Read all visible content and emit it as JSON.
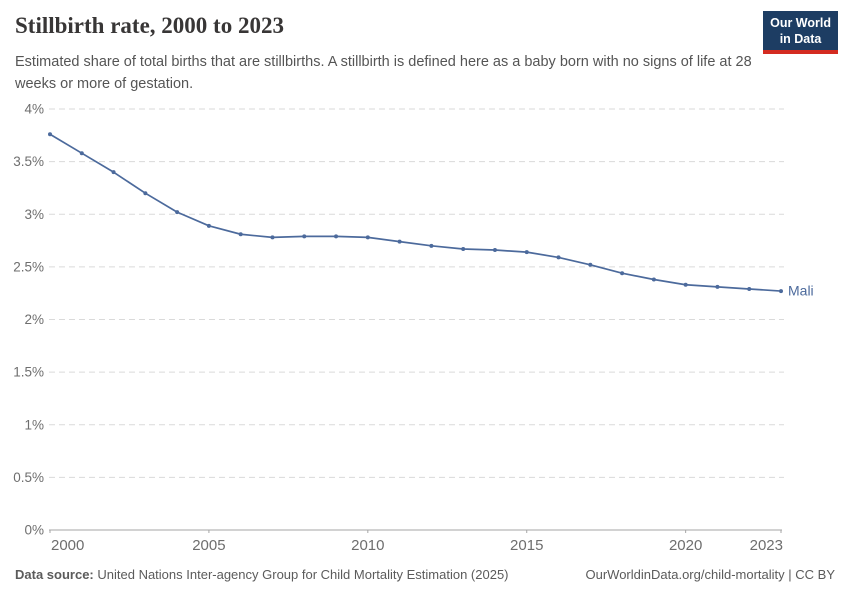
{
  "header": {
    "title": "Stillbirth rate, 2000 to 2023",
    "subtitle": "Estimated share of total births that are stillbirths. A stillbirth is defined here as a baby born with no signs of life at 28 weeks or more of gestation.",
    "logo": {
      "line1": "Our World",
      "line2": "in Data",
      "bg_color": "#1d3d63",
      "accent_color": "#d42b21"
    }
  },
  "chart_data": {
    "type": "line",
    "title": "Stillbirth rate, 2000 to 2023",
    "xlabel": "",
    "ylabel": "",
    "xlim": [
      2000,
      2023
    ],
    "ylim": [
      0,
      4
    ],
    "grid": "horizontal-dashed",
    "legend_position": "end-of-line-label",
    "xticks": [
      2000,
      2005,
      2010,
      2015,
      2020,
      2023
    ],
    "ytick_values": [
      0,
      0.5,
      1,
      1.5,
      2,
      2.5,
      3,
      3.5,
      4
    ],
    "ytick_labels": [
      "0%",
      "0.5%",
      "1%",
      "1.5%",
      "2%",
      "2.5%",
      "3%",
      "3.5%",
      "4%"
    ],
    "series": [
      {
        "name": "Mali",
        "color": "#4c6a9c",
        "x": [
          2000,
          2001,
          2002,
          2003,
          2004,
          2005,
          2006,
          2007,
          2008,
          2009,
          2010,
          2011,
          2012,
          2013,
          2014,
          2015,
          2016,
          2017,
          2018,
          2019,
          2020,
          2021,
          2022,
          2023
        ],
        "values": [
          3.76,
          3.58,
          3.4,
          3.2,
          3.02,
          2.89,
          2.81,
          2.78,
          2.79,
          2.79,
          2.78,
          2.74,
          2.7,
          2.67,
          2.66,
          2.64,
          2.59,
          2.52,
          2.44,
          2.38,
          2.33,
          2.31,
          2.29,
          2.27
        ]
      }
    ],
    "colors": {
      "axis_line": "#a5a5a5",
      "gridline": "#dadada",
      "tick_label": "#6e6e6e"
    }
  },
  "footer": {
    "data_source_label": "Data source:",
    "data_source_value": "United Nations Inter-agency Group for Child Mortality Estimation (2025)",
    "attribution": "OurWorldinData.org/child-mortality | CC BY"
  }
}
